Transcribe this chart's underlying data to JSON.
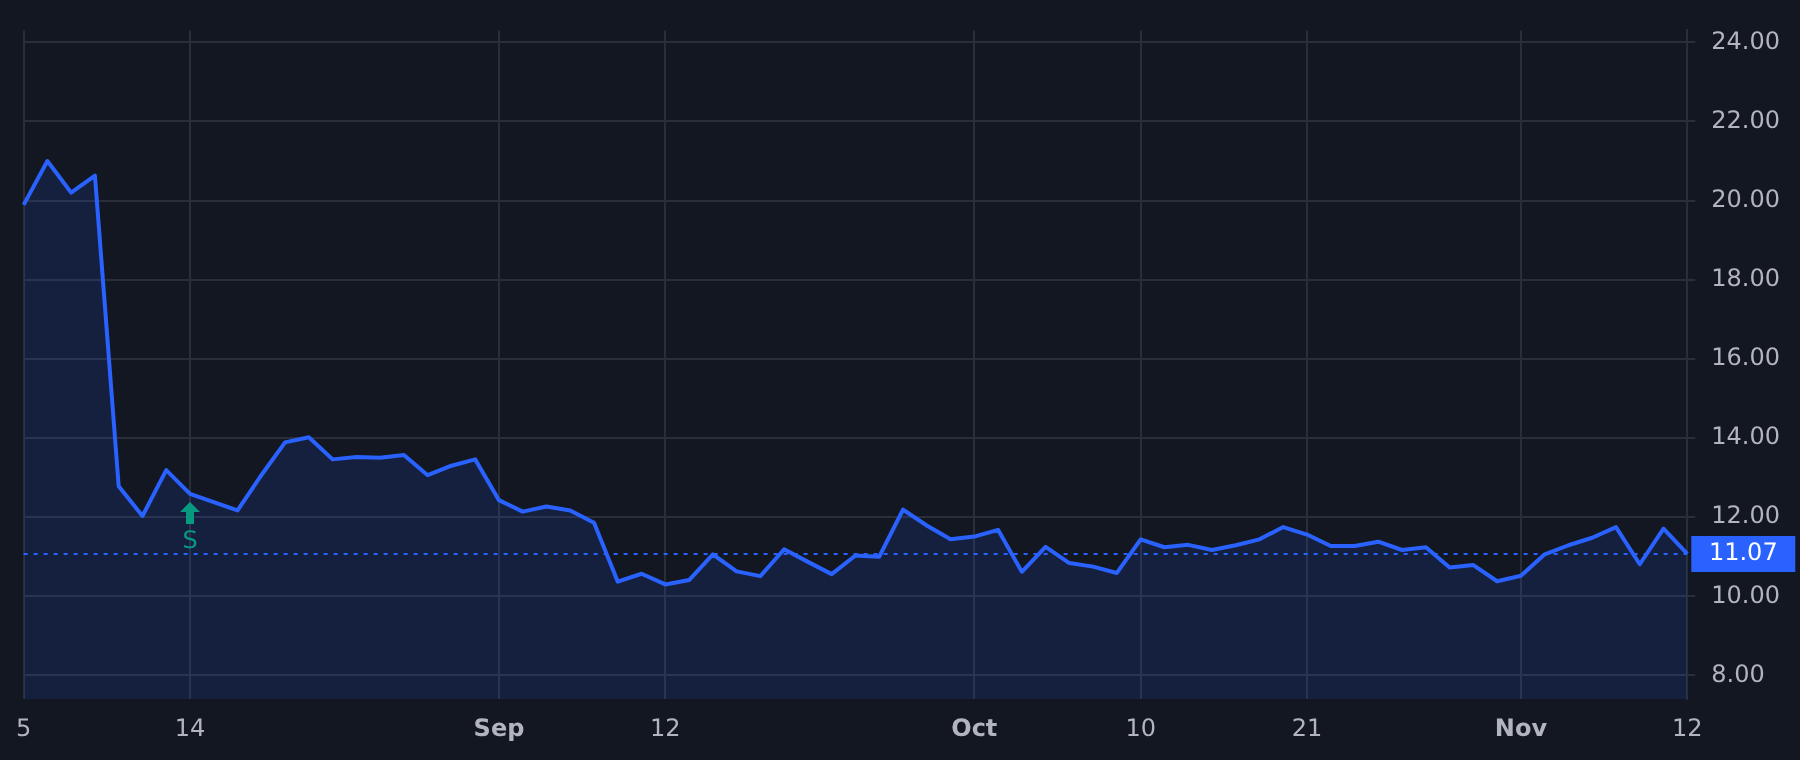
{
  "chart_data": {
    "type": "area",
    "categories": [
      "5",
      null,
      null,
      null,
      null,
      null,
      null,
      "14",
      null,
      null,
      null,
      null,
      null,
      null,
      null,
      null,
      null,
      null,
      null,
      null,
      "Sep",
      null,
      null,
      null,
      null,
      null,
      null,
      "12",
      null,
      null,
      null,
      null,
      null,
      null,
      null,
      null,
      null,
      null,
      null,
      null,
      "Oct",
      null,
      null,
      null,
      null,
      null,
      null,
      "10",
      null,
      null,
      null,
      null,
      null,
      null,
      "21",
      null,
      null,
      null,
      null,
      null,
      null,
      null,
      null,
      "Nov",
      null,
      null,
      null,
      null,
      null,
      null,
      "12"
    ],
    "series": [
      {
        "color": "#2962ff",
        "values": [
          19.89,
          21.0,
          20.2,
          20.63,
          12.78,
          12.03,
          13.19,
          12.59,
          12.38,
          12.17,
          13.06,
          13.89,
          14.02,
          13.46,
          13.52,
          13.5,
          13.57,
          13.06,
          13.3,
          13.46,
          12.43,
          12.14,
          12.27,
          12.17,
          11.86,
          10.37,
          10.57,
          10.3,
          10.41,
          11.06,
          10.63,
          10.51,
          11.19,
          10.87,
          10.56,
          11.03,
          11.0,
          12.19,
          11.79,
          11.44,
          11.51,
          11.68,
          10.62,
          11.25,
          10.84,
          10.75,
          10.59,
          11.44,
          11.24,
          11.3,
          11.17,
          11.29,
          11.44,
          11.75,
          11.56,
          11.27,
          11.27,
          11.38,
          11.17,
          11.24,
          10.73,
          10.79,
          10.38,
          10.52,
          11.06,
          11.29,
          11.48,
          11.75,
          10.81,
          11.71,
          11.07
        ]
      }
    ],
    "ylim": [
      7.4,
      24.3
    ],
    "yticks": [
      {
        "value": 8,
        "label": "8.00"
      },
      {
        "value": 10,
        "label": "10.00"
      },
      {
        "value": 12,
        "label": "12.00"
      },
      {
        "value": 14,
        "label": "14.00"
      },
      {
        "value": 16,
        "label": "16.00"
      },
      {
        "value": 18,
        "label": "18.00"
      },
      {
        "value": 20,
        "label": "20.00"
      },
      {
        "value": 22,
        "label": "22.00"
      },
      {
        "value": 24,
        "label": "24.00"
      }
    ],
    "ref_lines": [
      {
        "axis": "y",
        "value": 11.07,
        "label": "11.07",
        "color": "#2962ff",
        "line_style": "dotted"
      }
    ],
    "annotations": [
      "S"
    ],
    "grid": true,
    "legend": false,
    "marker": "none",
    "line_style": "solid"
  }
}
